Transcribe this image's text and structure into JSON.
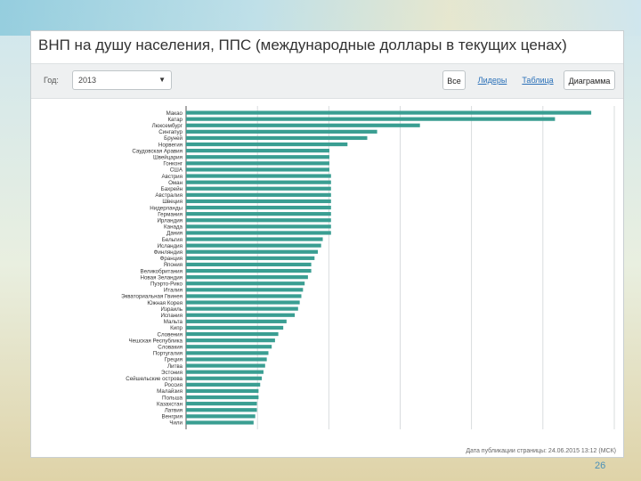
{
  "toolbar": {
    "year_label": "Год:",
    "year_value": "2013",
    "tabs": {
      "all": "Все",
      "leaders": "Лидеры",
      "table": "Таблица",
      "chart": "Диаграмма"
    }
  },
  "footer": {
    "published": "Дата публикации страницы: 24.06.2015 13:12 (МСК)"
  },
  "page_number": "26",
  "chart_data": {
    "type": "bar",
    "orientation": "horizontal",
    "title": "ВНП на душу населения, ППС (международные доллары в текущих ценах)",
    "bar_color": "#3a9e92",
    "grid": true,
    "categories": [
      "Макао",
      "Катар",
      "Люксембург",
      "Сингапур",
      "Бруней",
      "Норвегия",
      "Саудовская Аравия",
      "Швейцария",
      "Гонконг",
      "США",
      "Австрия",
      "Оман",
      "Бахрейн",
      "Австралия",
      "Швеция",
      "Нидерланды",
      "Германия",
      "Ирландия",
      "Канада",
      "Дания",
      "Бельгия",
      "Исландия",
      "Финляндия",
      "Франция",
      "Япония",
      "Великобритания",
      "Новая Зеландия",
      "Пуэрто-Рико",
      "Италия",
      "Экваториальная Гвинея",
      "Южная Корея",
      "Израиль",
      "Испания",
      "Мальта",
      "Кипр",
      "Словения",
      "Чешская Республика",
      "Словакия",
      "Португалия",
      "Греция",
      "Литва",
      "Эстония",
      "Сейшельские острова",
      "Россия",
      "Малайзия",
      "Польша",
      "Казахстан",
      "Латвия",
      "Венгрия",
      "Чили"
    ],
    "values": [
      123000,
      112000,
      71000,
      58000,
      55000,
      49000,
      43500,
      43500,
      43500,
      43500,
      44000,
      44000,
      44000,
      44000,
      44000,
      44000,
      44000,
      44000,
      44000,
      44000,
      41500,
      41000,
      40000,
      39000,
      38000,
      38000,
      37000,
      36000,
      35500,
      35000,
      34500,
      34000,
      33000,
      30500,
      29500,
      28000,
      27000,
      26000,
      25000,
      24500,
      24000,
      23500,
      23000,
      22500,
      22000,
      22000,
      21500,
      21500,
      21000,
      20500
    ],
    "xlim": [
      0,
      130000
    ]
  }
}
